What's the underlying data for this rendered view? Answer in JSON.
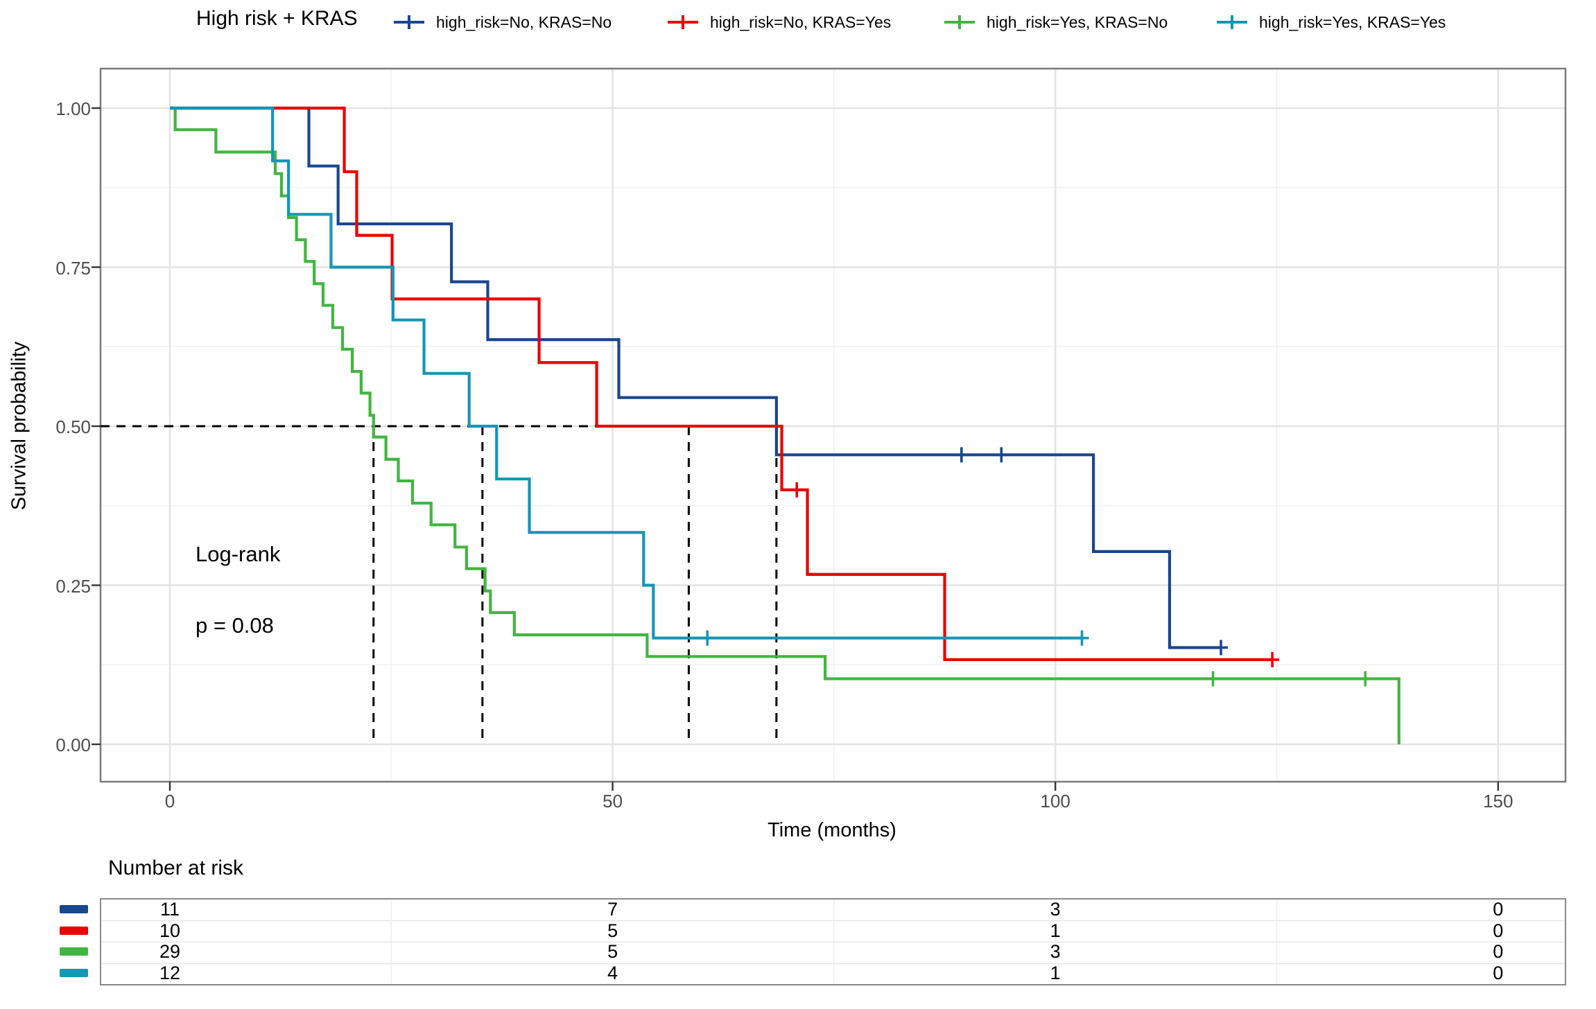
{
  "legend": {
    "title": "High risk + KRAS",
    "items": [
      {
        "label": "high_risk=No, KRAS=No",
        "color": "#19478f"
      },
      {
        "label": "high_risk=No, KRAS=Yes",
        "color": "#ec0000"
      },
      {
        "label": "high_risk=Yes, KRAS=No",
        "color": "#42b540"
      },
      {
        "label": "high_risk=Yes, KRAS=Yes",
        "color": "#1596b4"
      }
    ]
  },
  "axes": {
    "x_title": "Time (months)",
    "y_title": "Survival probability",
    "x_ticks": [
      {
        "label": "0",
        "value": 0
      },
      {
        "label": "50",
        "value": 50
      },
      {
        "label": "100",
        "value": 100
      },
      {
        "label": "150",
        "value": 150
      }
    ],
    "y_ticks": [
      {
        "label": "1.00",
        "value": 1.0
      },
      {
        "label": "0.75",
        "value": 0.75
      },
      {
        "label": "0.50",
        "value": 0.5
      },
      {
        "label": "0.25",
        "value": 0.25
      },
      {
        "label": "0.00",
        "value": 0.0
      }
    ]
  },
  "annotations": {
    "test_name": "Log-rank",
    "p_value": "p = 0.08"
  },
  "risk_table": {
    "title": "Number at risk",
    "times": [
      0,
      50,
      100,
      150
    ],
    "rows": [
      {
        "group": "high_risk=No, KRAS=No",
        "color": "#19478f",
        "counts": [
          11,
          7,
          3,
          0
        ]
      },
      {
        "group": "high_risk=No, KRAS=Yes",
        "color": "#ec0000",
        "counts": [
          10,
          5,
          1,
          0
        ]
      },
      {
        "group": "high_risk=Yes, KRAS=No",
        "color": "#42b540",
        "counts": [
          29,
          5,
          3,
          0
        ]
      },
      {
        "group": "high_risk=Yes, KRAS=Yes",
        "color": "#1596b4",
        "counts": [
          12,
          4,
          1,
          0
        ]
      }
    ]
  },
  "chart_data": {
    "type": "line",
    "subtype": "kaplan_meier_step",
    "title": "High risk + KRAS",
    "xlabel": "Time (months)",
    "ylabel": "Survival probability",
    "xlim": [
      0,
      157
    ],
    "ylim": [
      0,
      1
    ],
    "grid": true,
    "legend_position": "top",
    "median_survival_line": 0.5,
    "medians": [
      {
        "group": "high_risk=Yes, KRAS=No",
        "time": 23.0
      },
      {
        "group": "high_risk=Yes, KRAS=Yes",
        "time": 35.3
      },
      {
        "group": "high_risk=No, KRAS=Yes",
        "time": 58.6
      },
      {
        "group": "high_risk=No, KRAS=No",
        "time": 68.5
      }
    ],
    "series": [
      {
        "name": "high_risk=No, KRAS=No",
        "color": "#19478f",
        "n": 11,
        "steps": [
          [
            0,
            1.0
          ],
          [
            15.7,
            0.909
          ],
          [
            19.0,
            0.818
          ],
          [
            31.8,
            0.727
          ],
          [
            35.9,
            0.636
          ],
          [
            50.7,
            0.545
          ],
          [
            68.5,
            0.455
          ],
          [
            104.3,
            0.303
          ],
          [
            112.9,
            0.152
          ]
        ],
        "end_time": 118.7,
        "censors": [
          [
            89.4,
            0.455
          ],
          [
            93.9,
            0.455
          ],
          [
            118.7,
            0.152
          ]
        ]
      },
      {
        "name": "high_risk=No, KRAS=Yes",
        "color": "#ec0000",
        "n": 10,
        "steps": [
          [
            0,
            1.0
          ],
          [
            19.7,
            0.9
          ],
          [
            21.1,
            0.8
          ],
          [
            25.1,
            0.7
          ],
          [
            41.7,
            0.6
          ],
          [
            48.2,
            0.5
          ],
          [
            69.1,
            0.4
          ],
          [
            72.0,
            0.267
          ],
          [
            87.5,
            0.133
          ]
        ],
        "end_time": 124.5,
        "censors": [
          [
            70.8,
            0.4
          ],
          [
            124.5,
            0.133
          ]
        ]
      },
      {
        "name": "high_risk=Yes, KRAS=No",
        "color": "#42b540",
        "n": 29,
        "steps": [
          [
            0,
            1.0
          ],
          [
            0.6,
            0.966
          ],
          [
            5.2,
            0.931
          ],
          [
            11.9,
            0.897
          ],
          [
            12.6,
            0.862
          ],
          [
            13.4,
            0.828
          ],
          [
            14.3,
            0.793
          ],
          [
            15.3,
            0.759
          ],
          [
            16.3,
            0.724
          ],
          [
            17.3,
            0.69
          ],
          [
            18.4,
            0.655
          ],
          [
            19.5,
            0.621
          ],
          [
            20.6,
            0.586
          ],
          [
            21.6,
            0.552
          ],
          [
            22.6,
            0.517
          ],
          [
            23.0,
            0.483
          ],
          [
            24.4,
            0.448
          ],
          [
            25.8,
            0.414
          ],
          [
            27.4,
            0.379
          ],
          [
            29.5,
            0.345
          ],
          [
            32.2,
            0.31
          ],
          [
            33.5,
            0.276
          ],
          [
            35.6,
            0.241
          ],
          [
            36.2,
            0.207
          ],
          [
            38.9,
            0.172
          ],
          [
            53.9,
            0.138
          ],
          [
            74.0,
            0.103
          ],
          [
            138.8,
            0.0
          ]
        ],
        "end_time": 138.8,
        "censors": [
          [
            117.8,
            0.103
          ],
          [
            135.0,
            0.103
          ]
        ]
      },
      {
        "name": "high_risk=Yes, KRAS=Yes",
        "color": "#1596b4",
        "n": 12,
        "steps": [
          [
            0,
            1.0
          ],
          [
            11.6,
            0.917
          ],
          [
            13.4,
            0.833
          ],
          [
            18.2,
            0.75
          ],
          [
            25.2,
            0.667
          ],
          [
            28.7,
            0.583
          ],
          [
            33.8,
            0.5
          ],
          [
            36.9,
            0.417
          ],
          [
            40.6,
            0.333
          ],
          [
            53.5,
            0.25
          ],
          [
            54.6,
            0.167
          ]
        ],
        "end_time": 103.0,
        "censors": [
          [
            60.7,
            0.167
          ],
          [
            103.0,
            0.167
          ]
        ]
      }
    ]
  }
}
